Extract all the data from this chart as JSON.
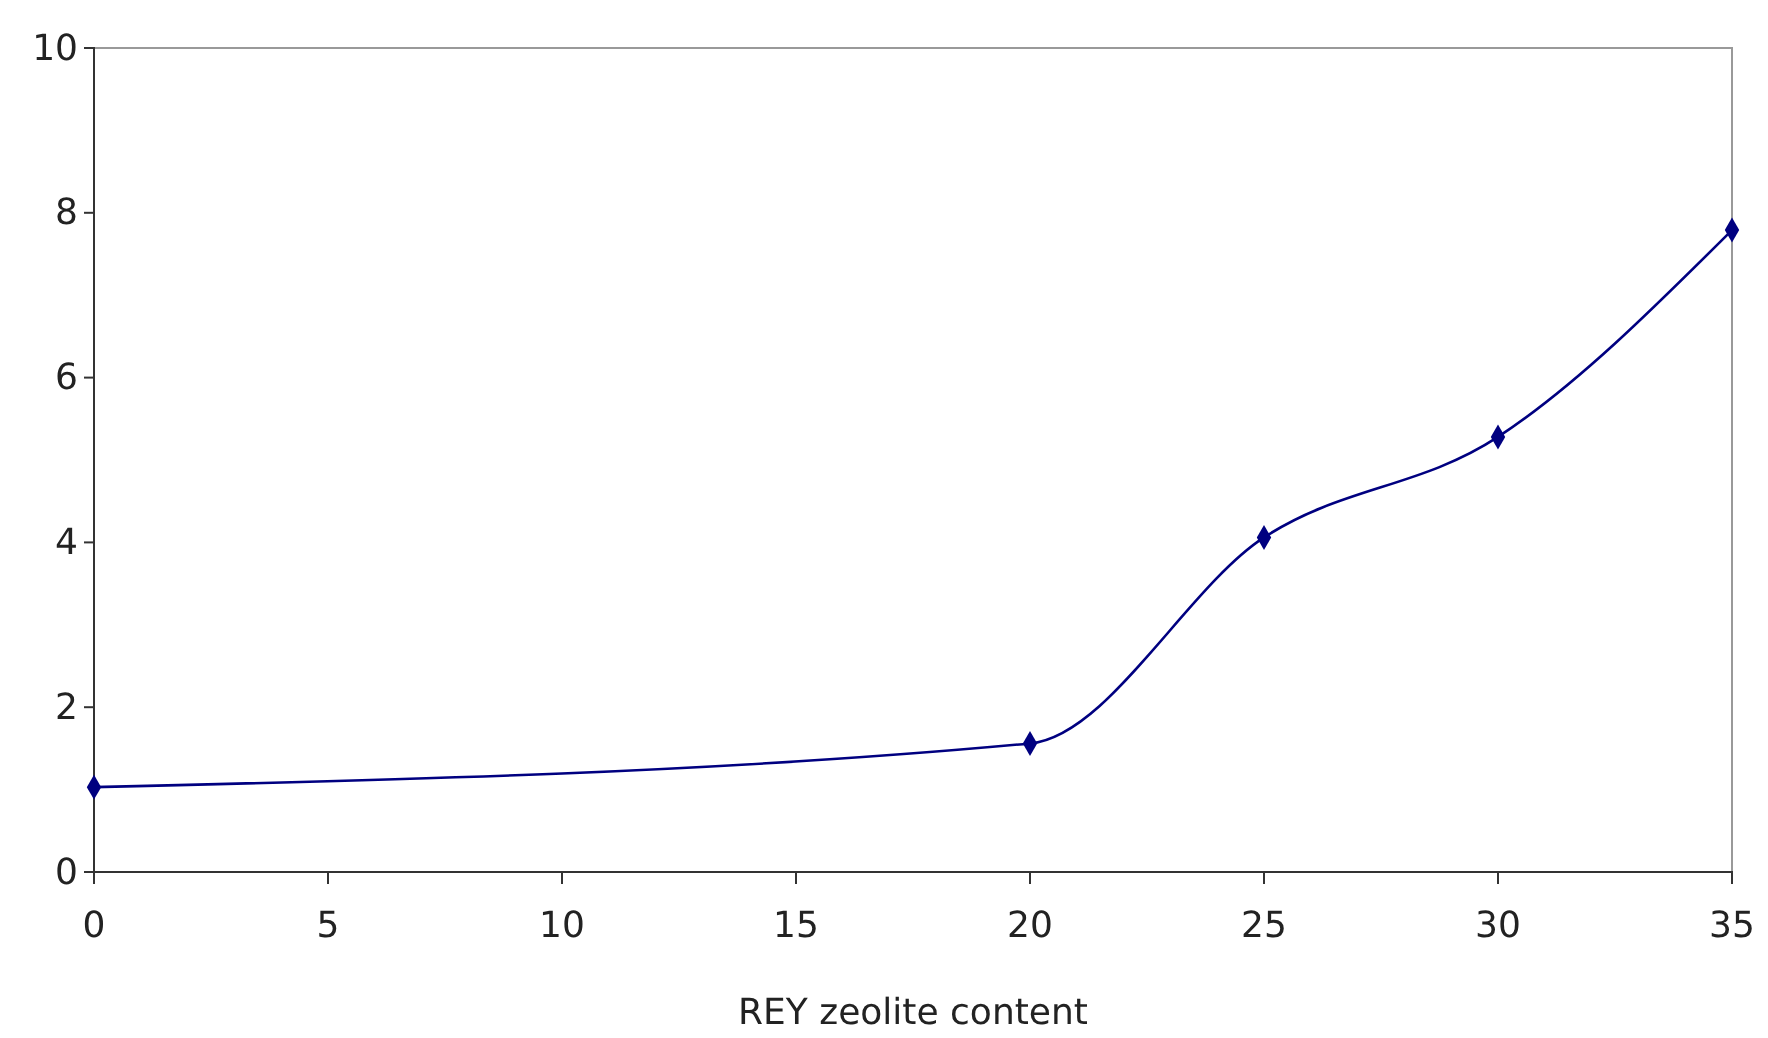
{
  "chart_data": {
    "type": "line",
    "xlabel": "REY zeolite content",
    "x": [
      0,
      20,
      25,
      30,
      35
    ],
    "series": [
      {
        "color": "#000080",
        "values": [
          1.03,
          1.56,
          4.06,
          5.28,
          7.79
        ]
      }
    ],
    "xlim": [
      0,
      35
    ],
    "xticks": [
      0,
      5,
      10,
      15,
      20,
      25,
      30,
      35
    ],
    "ylim": [
      0,
      10
    ],
    "yticks": [
      0,
      2,
      4,
      6,
      8,
      10
    ],
    "marker": "diamond",
    "line_style": "solid",
    "grid": false
  }
}
